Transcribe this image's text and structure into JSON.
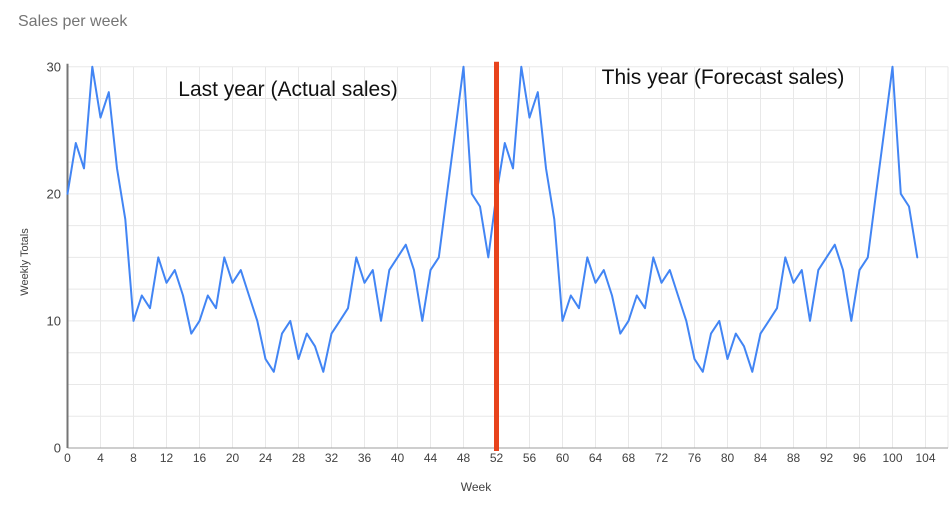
{
  "chart_data": {
    "type": "line",
    "title": "Sales per week",
    "xlabel": "Week",
    "ylabel": "Weekly Totals",
    "xlim": [
      0,
      104
    ],
    "ylim": [
      0,
      30
    ],
    "x_tick_step": 4,
    "y_tick_values": [
      0,
      10,
      20,
      30
    ],
    "y_minor_gridline_step": 2.5,
    "grid": true,
    "legend_position": "none",
    "annotations": [
      {
        "text": "Last year (Actual sales)"
      },
      {
        "text": "This year (Forecast sales)"
      }
    ],
    "divider_line": {
      "x_week": 52,
      "color": "#e8431c"
    },
    "series": [
      {
        "name": "Weekly Totals",
        "color": "#4285f4",
        "x_start_week": 0,
        "x_step": 1,
        "values": [
          20,
          24,
          22,
          30,
          26,
          28,
          22,
          18,
          10,
          12,
          11,
          15,
          13,
          14,
          12,
          9,
          10,
          12,
          11,
          15,
          13,
          14,
          12,
          10,
          7,
          6,
          9,
          10,
          7,
          9,
          8,
          6,
          9,
          10,
          11,
          15,
          13,
          14,
          10,
          14,
          15,
          16,
          14,
          10,
          14,
          15,
          20,
          25,
          30,
          20,
          19,
          15,
          20,
          24,
          22,
          30,
          26,
          28,
          22,
          18,
          10,
          12,
          11,
          15,
          13,
          14,
          12,
          9,
          10,
          12,
          11,
          15,
          13,
          14,
          12,
          10,
          7,
          6,
          9,
          10,
          7,
          9,
          8,
          6,
          9,
          10,
          11,
          15,
          13,
          14,
          10,
          14,
          15,
          16,
          14,
          10,
          14,
          15,
          20,
          25,
          30,
          20,
          19,
          15
        ]
      }
    ],
    "colors": {
      "line": "#4285f4",
      "divider": "#e8431c",
      "gridline": "#e8e8e8",
      "axis": "#757575",
      "baseline": "#9e9e9e",
      "tick_label": "#424242",
      "title": "#757575"
    }
  }
}
